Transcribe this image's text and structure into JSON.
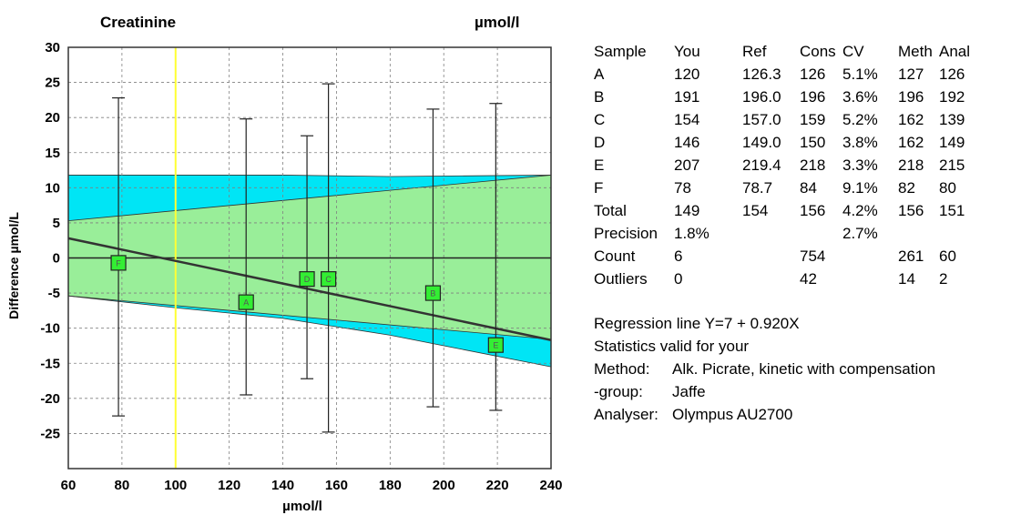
{
  "chart_data": {
    "type": "scatter",
    "title": "Creatinine",
    "unit_label": "µmol/l",
    "xlabel": "µmol/l",
    "ylabel": "Difference µmol/L",
    "xlim": [
      60,
      240
    ],
    "ylim": [
      -30,
      30
    ],
    "x_ticks": [
      60,
      80,
      100,
      120,
      140,
      160,
      180,
      200,
      220,
      240
    ],
    "y_ticks": [
      30,
      25,
      20,
      15,
      10,
      5,
      0,
      -5,
      -10,
      -15,
      -20,
      -25
    ],
    "grid": true,
    "reference_line_x": 100,
    "regression_line": {
      "x": [
        60,
        240
      ],
      "y": [
        2.8,
        -11.7
      ]
    },
    "outer_band": {
      "x": [
        60,
        100,
        140,
        180,
        240
      ],
      "upper": [
        11.8,
        11.8,
        11.8,
        11.6,
        11.8
      ],
      "lower": [
        -5.4,
        -7.1,
        -8.6,
        -11.0,
        -15.5
      ]
    },
    "inner_band": {
      "x": [
        60,
        240
      ],
      "upper": [
        5.3,
        11.8
      ],
      "lower": [
        -5.4,
        -11.6
      ]
    },
    "points": [
      {
        "label": "F",
        "x": 78.7,
        "y": -0.7,
        "err_low": -22.5,
        "err_high": 22.8
      },
      {
        "label": "A",
        "x": 126.3,
        "y": -6.3,
        "err_low": -19.5,
        "err_high": 19.8
      },
      {
        "label": "D",
        "x": 149.0,
        "y": -3.0,
        "err_low": -17.2,
        "err_high": 17.4
      },
      {
        "label": "C",
        "x": 157.0,
        "y": -3.0,
        "err_low": -24.8,
        "err_high": 24.8
      },
      {
        "label": "B",
        "x": 196.0,
        "y": -5.0,
        "err_low": -21.2,
        "err_high": 21.2
      },
      {
        "label": "E",
        "x": 219.4,
        "y": -12.4,
        "err_low": -21.7,
        "err_high": 22.0
      }
    ],
    "colors": {
      "outer_band": "#00e5f5",
      "inner_band": "#99ee99",
      "marker": "#33ee33",
      "reference_line": "#ffff33",
      "regression": "#333333"
    }
  },
  "stats_table": {
    "header": [
      "Sample",
      "You",
      "Ref",
      "Cons",
      "CV",
      "Meth",
      "Anal"
    ],
    "rows": [
      [
        "A",
        "120",
        "126.3",
        "126",
        "5.1%",
        "127",
        "126"
      ],
      [
        "B",
        "191",
        "196.0",
        "196",
        "3.6%",
        "196",
        "192"
      ],
      [
        "C",
        "154",
        "157.0",
        "159",
        "5.2%",
        "162",
        "139"
      ],
      [
        "D",
        "146",
        "149.0",
        "150",
        "3.8%",
        "162",
        "149"
      ],
      [
        "E",
        "207",
        "219.4",
        "218",
        "3.3%",
        "218",
        "215"
      ],
      [
        "F",
        "78",
        "78.7",
        "84",
        "9.1%",
        "82",
        "80"
      ],
      [
        "Total",
        "149",
        "154",
        "156",
        "4.2%",
        "156",
        "151"
      ],
      [
        "Precision",
        "1.8%",
        "",
        "",
        "2.7%",
        "",
        ""
      ],
      [
        "Count",
        "6",
        "",
        "754",
        "",
        "261",
        "60"
      ],
      [
        "Outliers",
        "0",
        "",
        "42",
        "",
        "14",
        "2"
      ]
    ]
  },
  "notes": {
    "regression": "Regression line Y=7 + 0.920X",
    "validity": "Statistics valid for your",
    "method_label": "Method:",
    "method_value": "Alk. Picrate, kinetic with compensation",
    "group_label": "-group:",
    "group_value": "Jaffe",
    "analyser_label": "Analyser:",
    "analyser_value": "Olympus AU2700"
  }
}
